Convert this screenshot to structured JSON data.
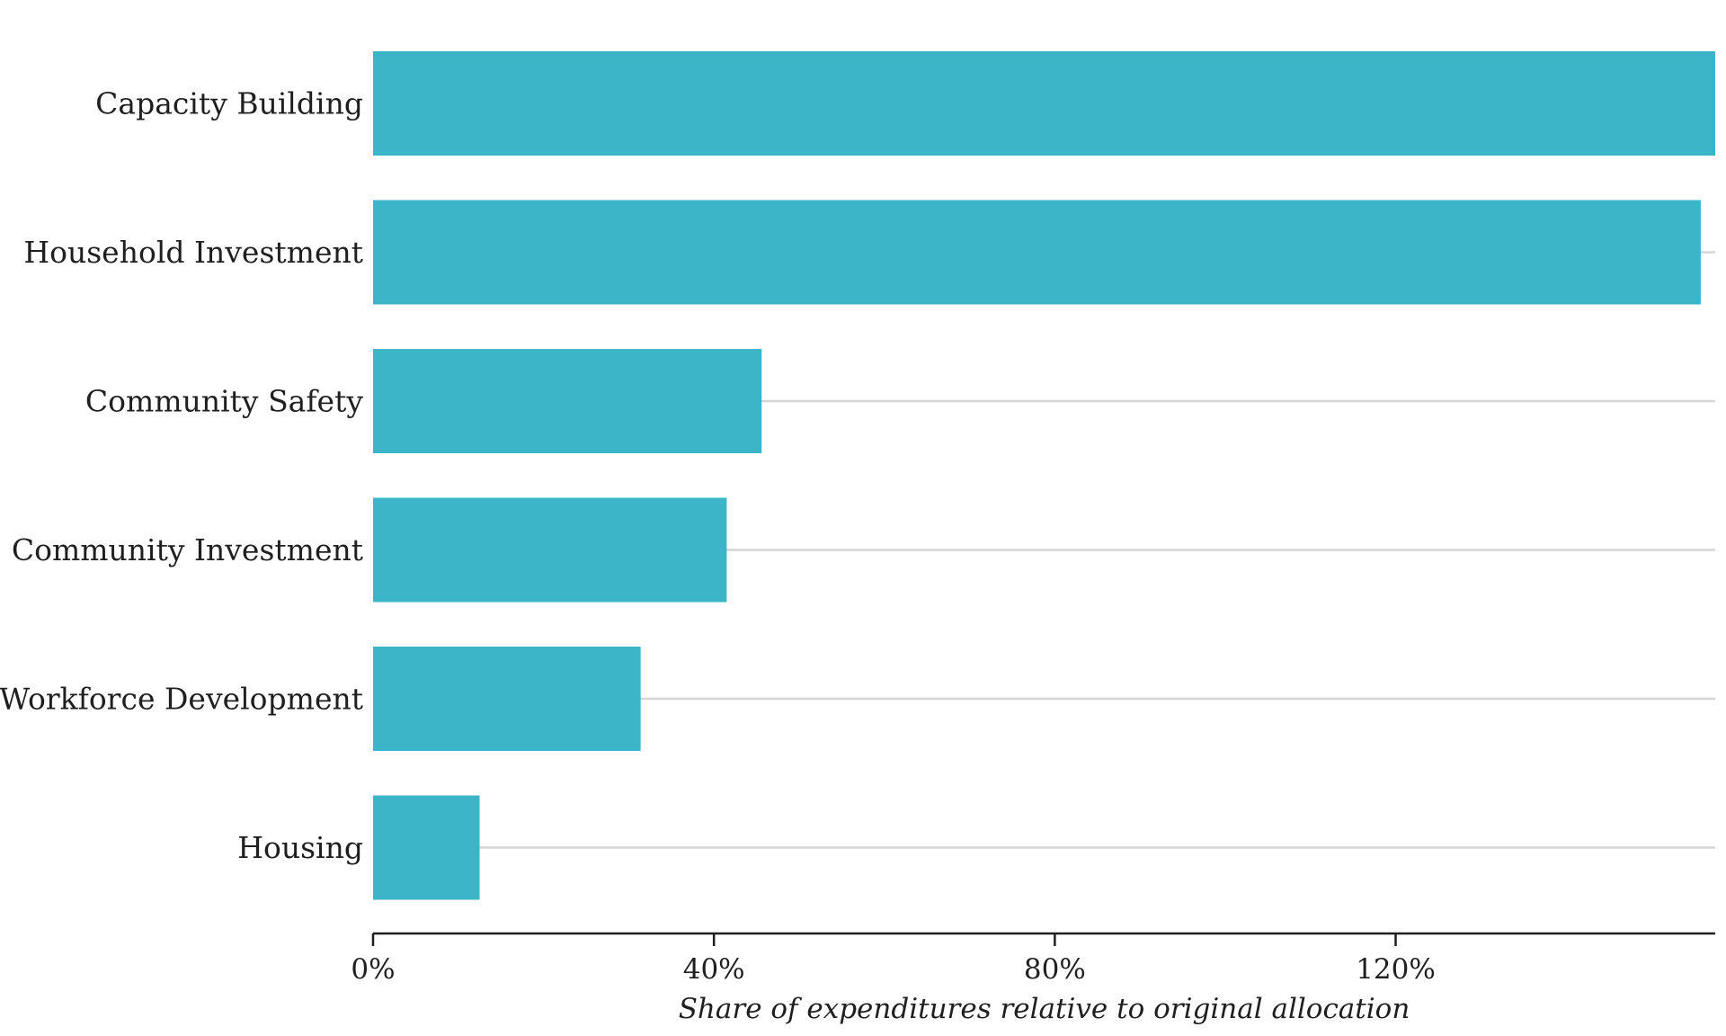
{
  "chart_data": {
    "type": "bar",
    "orientation": "horizontal",
    "categories": [
      "Capacity Building",
      "Household Investment",
      "Community Safety",
      "Community Investment",
      "Workforce Development",
      "Housing"
    ],
    "values": [
      157.5,
      155.8,
      45.6,
      41.5,
      31.4,
      12.5
    ],
    "title": "",
    "xlabel": "Share of expenditures relative to original allocation",
    "ylabel": "",
    "xlim": [
      0,
      157.5
    ],
    "x_ticks": [
      0,
      40,
      80,
      120
    ],
    "x_tick_labels": [
      "0%",
      "40%",
      "80%",
      "120%"
    ],
    "grid": "horizontal-at-category",
    "legend": "none",
    "colors": {
      "bar": "#3DB5C9",
      "grid": "#d6d6d6",
      "axis": "#1f1f1f",
      "text": "#1f1f1f"
    }
  }
}
